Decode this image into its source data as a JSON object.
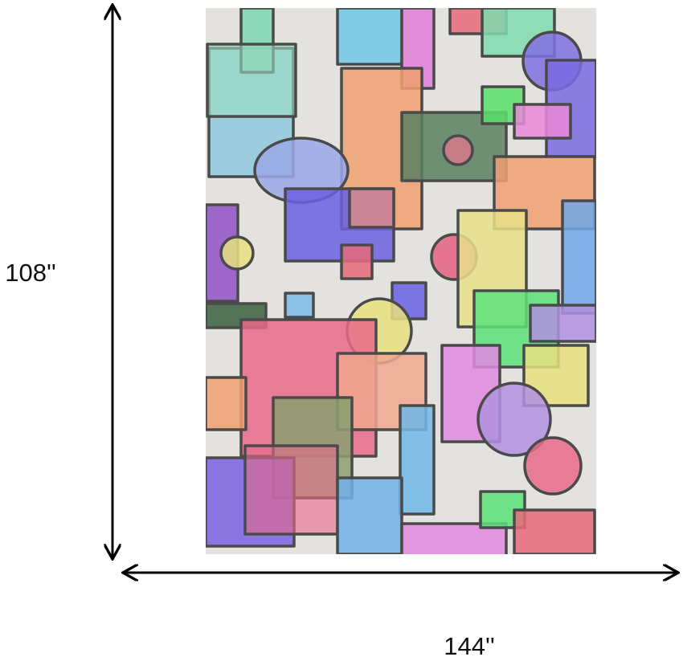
{
  "dimensions": {
    "height_label": "108''",
    "width_label": "144''"
  }
}
